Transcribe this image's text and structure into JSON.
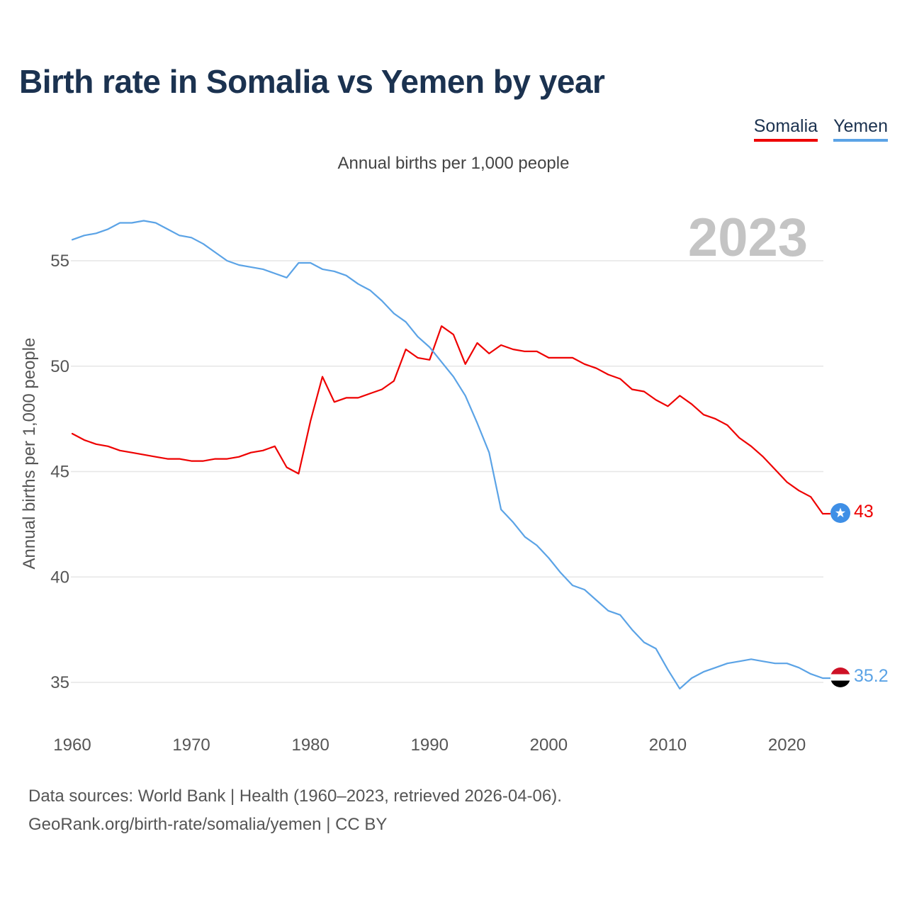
{
  "title": "Birth rate in Somalia vs Yemen by year",
  "subtitle": "Annual births per 1,000 people",
  "footer": {
    "line1": "Data sources: World Bank | Health (1960–2023, retrieved 2026-04-06).",
    "line2": "GeoRank.org/birth-rate/somalia/yemen | CC BY"
  },
  "legend": {
    "somalia": "Somalia",
    "yemen": "Yemen"
  },
  "colors": {
    "somalia": "#ee0000",
    "yemen": "#5ba3e6",
    "title": "#1b3250"
  },
  "chart_data": {
    "type": "line",
    "title": "Birth rate in Somalia vs Yemen by year",
    "subtitle": "Annual births per 1,000 people",
    "xlabel": "",
    "ylabel": "Annual births per 1,000 people",
    "highlight_year": "2023",
    "xlim": [
      1960,
      2023
    ],
    "ylim": [
      33.5,
      57
    ],
    "xticks": [
      1960,
      1970,
      1980,
      1990,
      2000,
      2010,
      2020
    ],
    "yticks": [
      35,
      40,
      45,
      50,
      55
    ],
    "grid": true,
    "legend_position": "top-right",
    "x": [
      1960,
      1961,
      1962,
      1963,
      1964,
      1965,
      1966,
      1967,
      1968,
      1969,
      1970,
      1971,
      1972,
      1973,
      1974,
      1975,
      1976,
      1977,
      1978,
      1979,
      1980,
      1981,
      1982,
      1983,
      1984,
      1985,
      1986,
      1987,
      1988,
      1989,
      1990,
      1991,
      1992,
      1993,
      1994,
      1995,
      1996,
      1997,
      1998,
      1999,
      2000,
      2001,
      2002,
      2003,
      2004,
      2005,
      2006,
      2007,
      2008,
      2009,
      2010,
      2011,
      2012,
      2013,
      2014,
      2015,
      2016,
      2017,
      2018,
      2019,
      2020,
      2021,
      2022,
      2023
    ],
    "series": [
      {
        "name": "Somalia",
        "color": "#ee0000",
        "end_label": "43",
        "values": [
          46.8,
          46.5,
          46.3,
          46.2,
          46.0,
          45.9,
          45.8,
          45.7,
          45.6,
          45.6,
          45.5,
          45.5,
          45.6,
          45.6,
          45.7,
          45.9,
          46.0,
          46.2,
          45.2,
          44.9,
          47.4,
          49.5,
          48.3,
          48.5,
          48.5,
          48.7,
          48.9,
          49.3,
          50.8,
          50.4,
          50.3,
          51.9,
          51.5,
          50.1,
          51.1,
          50.6,
          51.0,
          50.8,
          50.7,
          50.7,
          50.4,
          50.4,
          50.4,
          50.1,
          49.9,
          49.6,
          49.4,
          48.9,
          48.8,
          48.4,
          48.1,
          48.6,
          48.2,
          47.7,
          47.5,
          47.2,
          46.6,
          46.2,
          45.7,
          45.1,
          44.5,
          44.1,
          43.8,
          43.0
        ]
      },
      {
        "name": "Yemen",
        "color": "#5ba3e6",
        "end_label": "35.2",
        "values": [
          56.0,
          56.2,
          56.3,
          56.5,
          56.8,
          56.8,
          56.9,
          56.8,
          56.5,
          56.2,
          56.1,
          55.8,
          55.4,
          55.0,
          54.8,
          54.7,
          54.6,
          54.4,
          54.2,
          54.9,
          54.9,
          54.6,
          54.5,
          54.3,
          53.9,
          53.6,
          53.1,
          52.5,
          52.1,
          51.4,
          50.9,
          50.2,
          49.5,
          48.6,
          47.3,
          45.9,
          43.2,
          42.6,
          41.9,
          41.5,
          40.9,
          40.2,
          39.6,
          39.4,
          38.9,
          38.4,
          38.2,
          37.5,
          36.9,
          36.6,
          35.6,
          34.7,
          35.2,
          35.5,
          35.7,
          35.9,
          36.0,
          36.1,
          36.0,
          35.9,
          35.9,
          35.7,
          35.4,
          35.2
        ]
      }
    ]
  }
}
